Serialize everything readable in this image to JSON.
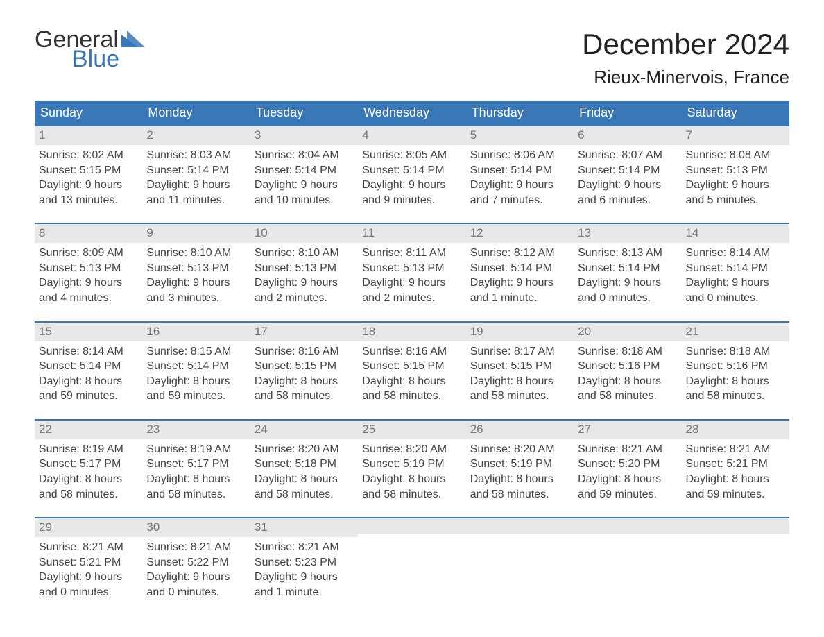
{
  "brand": {
    "word1": "General",
    "word2": "Blue",
    "accent_color": "#3a77b7"
  },
  "title": "December 2024",
  "location": "Rieux-Minervois, France",
  "colors": {
    "header_bg": "#3a77b7",
    "header_text": "#ffffff",
    "daynum_bg": "#e8e8e8",
    "daynum_text": "#777777",
    "body_text": "#444444",
    "week_rule": "#3a77b7",
    "page_bg": "#ffffff"
  },
  "typography": {
    "title_fontsize_pt": 32,
    "location_fontsize_pt": 20,
    "dayheader_fontsize_pt": 13,
    "cell_fontsize_pt": 12
  },
  "layout": {
    "columns": 7,
    "rows": 5
  },
  "day_headers": [
    "Sunday",
    "Monday",
    "Tuesday",
    "Wednesday",
    "Thursday",
    "Friday",
    "Saturday"
  ],
  "weeks": [
    [
      {
        "n": "1",
        "sunrise": "Sunrise: 8:02 AM",
        "sunset": "Sunset: 5:15 PM",
        "d1": "Daylight: 9 hours",
        "d2": "and 13 minutes."
      },
      {
        "n": "2",
        "sunrise": "Sunrise: 8:03 AM",
        "sunset": "Sunset: 5:14 PM",
        "d1": "Daylight: 9 hours",
        "d2": "and 11 minutes."
      },
      {
        "n": "3",
        "sunrise": "Sunrise: 8:04 AM",
        "sunset": "Sunset: 5:14 PM",
        "d1": "Daylight: 9 hours",
        "d2": "and 10 minutes."
      },
      {
        "n": "4",
        "sunrise": "Sunrise: 8:05 AM",
        "sunset": "Sunset: 5:14 PM",
        "d1": "Daylight: 9 hours",
        "d2": "and 9 minutes."
      },
      {
        "n": "5",
        "sunrise": "Sunrise: 8:06 AM",
        "sunset": "Sunset: 5:14 PM",
        "d1": "Daylight: 9 hours",
        "d2": "and 7 minutes."
      },
      {
        "n": "6",
        "sunrise": "Sunrise: 8:07 AM",
        "sunset": "Sunset: 5:14 PM",
        "d1": "Daylight: 9 hours",
        "d2": "and 6 minutes."
      },
      {
        "n": "7",
        "sunrise": "Sunrise: 8:08 AM",
        "sunset": "Sunset: 5:13 PM",
        "d1": "Daylight: 9 hours",
        "d2": "and 5 minutes."
      }
    ],
    [
      {
        "n": "8",
        "sunrise": "Sunrise: 8:09 AM",
        "sunset": "Sunset: 5:13 PM",
        "d1": "Daylight: 9 hours",
        "d2": "and 4 minutes."
      },
      {
        "n": "9",
        "sunrise": "Sunrise: 8:10 AM",
        "sunset": "Sunset: 5:13 PM",
        "d1": "Daylight: 9 hours",
        "d2": "and 3 minutes."
      },
      {
        "n": "10",
        "sunrise": "Sunrise: 8:10 AM",
        "sunset": "Sunset: 5:13 PM",
        "d1": "Daylight: 9 hours",
        "d2": "and 2 minutes."
      },
      {
        "n": "11",
        "sunrise": "Sunrise: 8:11 AM",
        "sunset": "Sunset: 5:13 PM",
        "d1": "Daylight: 9 hours",
        "d2": "and 2 minutes."
      },
      {
        "n": "12",
        "sunrise": "Sunrise: 8:12 AM",
        "sunset": "Sunset: 5:14 PM",
        "d1": "Daylight: 9 hours",
        "d2": "and 1 minute."
      },
      {
        "n": "13",
        "sunrise": "Sunrise: 8:13 AM",
        "sunset": "Sunset: 5:14 PM",
        "d1": "Daylight: 9 hours",
        "d2": "and 0 minutes."
      },
      {
        "n": "14",
        "sunrise": "Sunrise: 8:14 AM",
        "sunset": "Sunset: 5:14 PM",
        "d1": "Daylight: 9 hours",
        "d2": "and 0 minutes."
      }
    ],
    [
      {
        "n": "15",
        "sunrise": "Sunrise: 8:14 AM",
        "sunset": "Sunset: 5:14 PM",
        "d1": "Daylight: 8 hours",
        "d2": "and 59 minutes."
      },
      {
        "n": "16",
        "sunrise": "Sunrise: 8:15 AM",
        "sunset": "Sunset: 5:14 PM",
        "d1": "Daylight: 8 hours",
        "d2": "and 59 minutes."
      },
      {
        "n": "17",
        "sunrise": "Sunrise: 8:16 AM",
        "sunset": "Sunset: 5:15 PM",
        "d1": "Daylight: 8 hours",
        "d2": "and 58 minutes."
      },
      {
        "n": "18",
        "sunrise": "Sunrise: 8:16 AM",
        "sunset": "Sunset: 5:15 PM",
        "d1": "Daylight: 8 hours",
        "d2": "and 58 minutes."
      },
      {
        "n": "19",
        "sunrise": "Sunrise: 8:17 AM",
        "sunset": "Sunset: 5:15 PM",
        "d1": "Daylight: 8 hours",
        "d2": "and 58 minutes."
      },
      {
        "n": "20",
        "sunrise": "Sunrise: 8:18 AM",
        "sunset": "Sunset: 5:16 PM",
        "d1": "Daylight: 8 hours",
        "d2": "and 58 minutes."
      },
      {
        "n": "21",
        "sunrise": "Sunrise: 8:18 AM",
        "sunset": "Sunset: 5:16 PM",
        "d1": "Daylight: 8 hours",
        "d2": "and 58 minutes."
      }
    ],
    [
      {
        "n": "22",
        "sunrise": "Sunrise: 8:19 AM",
        "sunset": "Sunset: 5:17 PM",
        "d1": "Daylight: 8 hours",
        "d2": "and 58 minutes."
      },
      {
        "n": "23",
        "sunrise": "Sunrise: 8:19 AM",
        "sunset": "Sunset: 5:17 PM",
        "d1": "Daylight: 8 hours",
        "d2": "and 58 minutes."
      },
      {
        "n": "24",
        "sunrise": "Sunrise: 8:20 AM",
        "sunset": "Sunset: 5:18 PM",
        "d1": "Daylight: 8 hours",
        "d2": "and 58 minutes."
      },
      {
        "n": "25",
        "sunrise": "Sunrise: 8:20 AM",
        "sunset": "Sunset: 5:19 PM",
        "d1": "Daylight: 8 hours",
        "d2": "and 58 minutes."
      },
      {
        "n": "26",
        "sunrise": "Sunrise: 8:20 AM",
        "sunset": "Sunset: 5:19 PM",
        "d1": "Daylight: 8 hours",
        "d2": "and 58 minutes."
      },
      {
        "n": "27",
        "sunrise": "Sunrise: 8:21 AM",
        "sunset": "Sunset: 5:20 PM",
        "d1": "Daylight: 8 hours",
        "d2": "and 59 minutes."
      },
      {
        "n": "28",
        "sunrise": "Sunrise: 8:21 AM",
        "sunset": "Sunset: 5:21 PM",
        "d1": "Daylight: 8 hours",
        "d2": "and 59 minutes."
      }
    ],
    [
      {
        "n": "29",
        "sunrise": "Sunrise: 8:21 AM",
        "sunset": "Sunset: 5:21 PM",
        "d1": "Daylight: 9 hours",
        "d2": "and 0 minutes."
      },
      {
        "n": "30",
        "sunrise": "Sunrise: 8:21 AM",
        "sunset": "Sunset: 5:22 PM",
        "d1": "Daylight: 9 hours",
        "d2": "and 0 minutes."
      },
      {
        "n": "31",
        "sunrise": "Sunrise: 8:21 AM",
        "sunset": "Sunset: 5:23 PM",
        "d1": "Daylight: 9 hours",
        "d2": "and 1 minute."
      },
      null,
      null,
      null,
      null
    ]
  ]
}
